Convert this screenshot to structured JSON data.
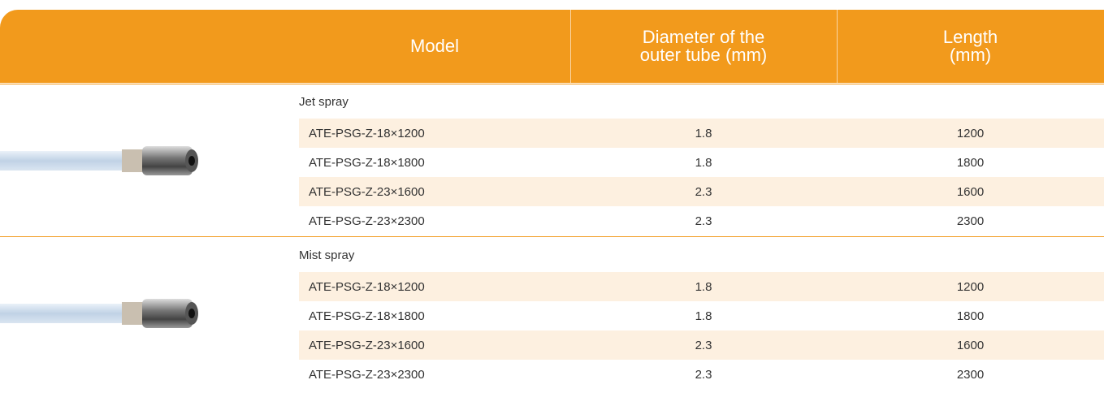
{
  "header": {
    "columns": [
      "Model",
      "Diameter of the\nouter tube (mm)",
      "Length\n(mm)"
    ]
  },
  "groups": [
    {
      "label": "Jet spray",
      "rows": [
        [
          "ATE-PSG-Z-18×1200",
          "1.8",
          "1200"
        ],
        [
          "ATE-PSG-Z-18×1800",
          "1.8",
          "1800"
        ],
        [
          "ATE-PSG-Z-23×1600",
          "2.3",
          "1600"
        ],
        [
          "ATE-PSG-Z-23×2300",
          "2.3",
          "2300"
        ]
      ]
    },
    {
      "label": "Mist spray",
      "rows": [
        [
          "ATE-PSG-Z-18×1200",
          "1.8",
          "1200"
        ],
        [
          "ATE-PSG-Z-18×1800",
          "1.8",
          "1800"
        ],
        [
          "ATE-PSG-Z-23×1600",
          "2.3",
          "1600"
        ],
        [
          "ATE-PSG-Z-23×2300",
          "2.3",
          "2300"
        ]
      ]
    }
  ]
}
